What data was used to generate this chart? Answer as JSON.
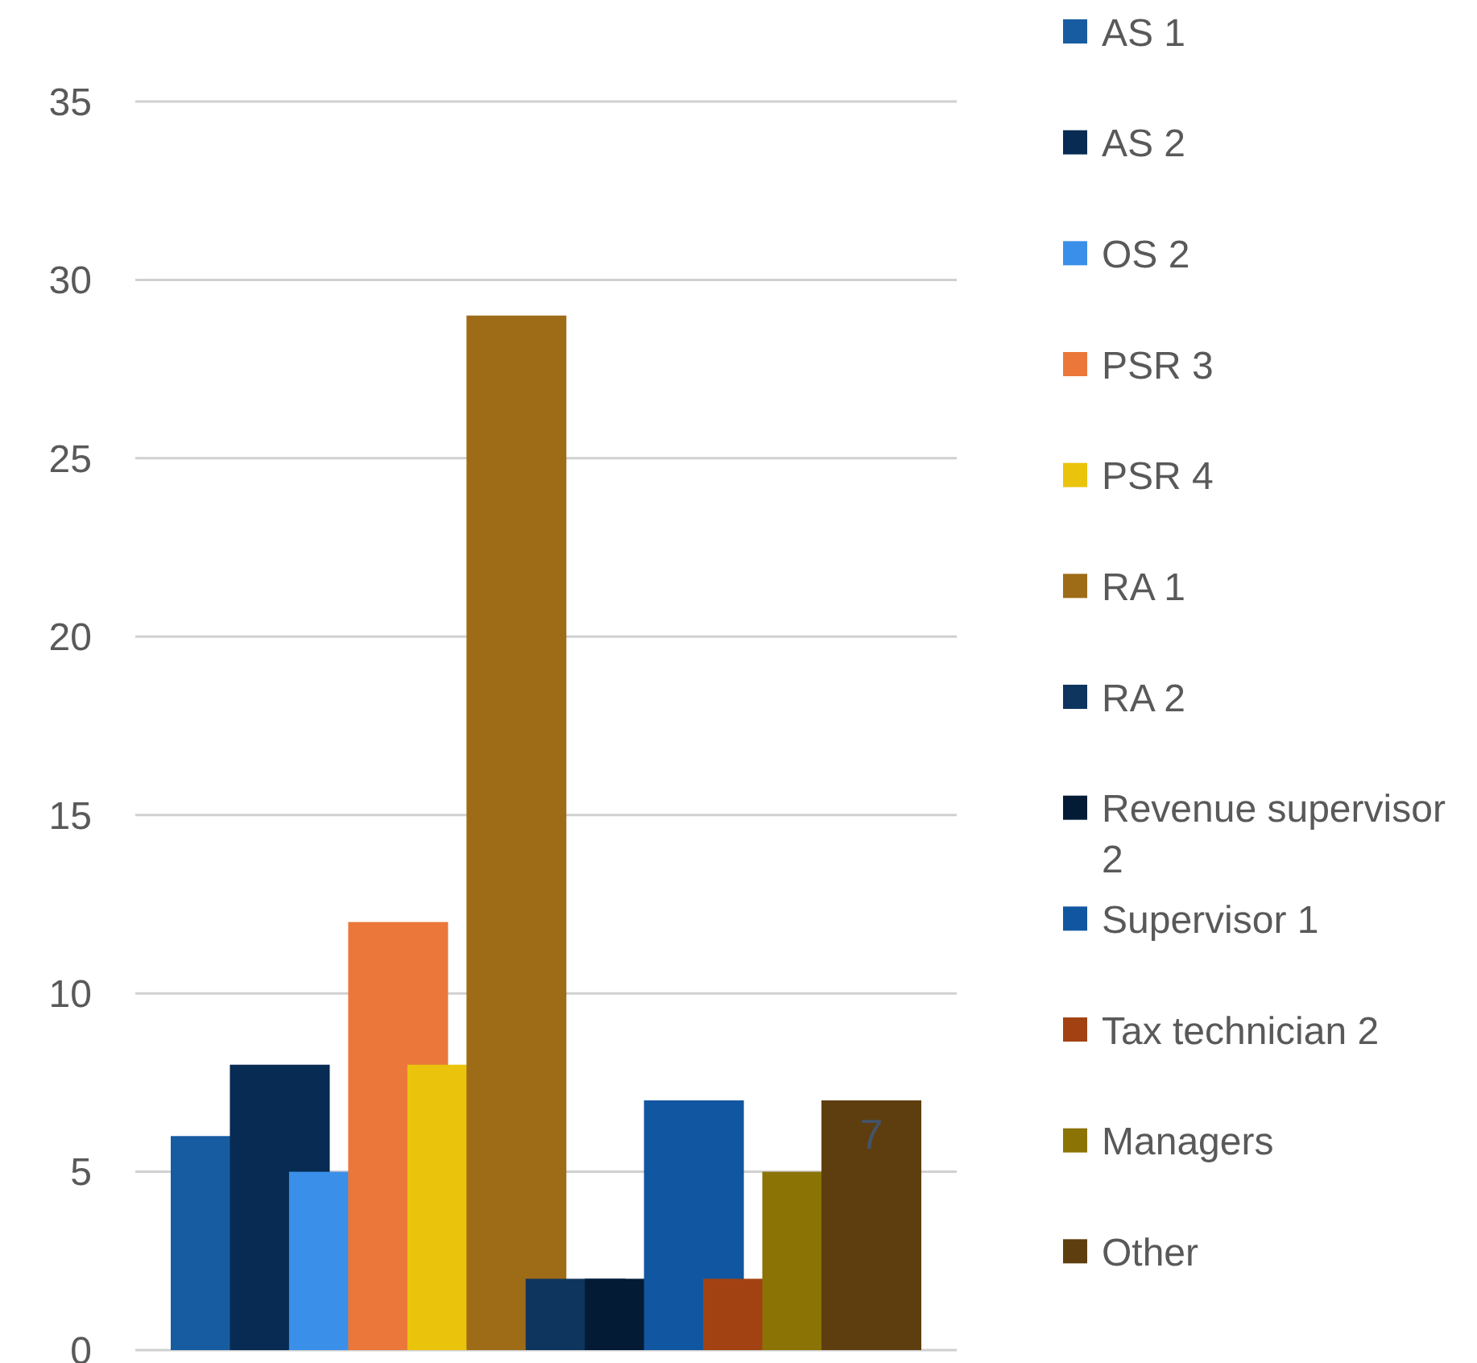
{
  "chart_data": {
    "type": "bar",
    "categories": [
      null
    ],
    "ylim": [
      0,
      35
    ],
    "yticks": [
      0,
      5,
      10,
      15,
      20,
      25,
      30,
      35
    ],
    "grid": "y",
    "legend": "right",
    "series": [
      {
        "name": "AS 1",
        "color": "#175ca1",
        "values": [
          6
        ]
      },
      {
        "name": "AS 2",
        "color": "#072b52",
        "values": [
          8
        ]
      },
      {
        "name": "OS 2",
        "color": "#3a90e8",
        "values": [
          5
        ]
      },
      {
        "name": "PSR 3",
        "color": "#eb773a",
        "values": [
          12
        ]
      },
      {
        "name": "PSR 4",
        "color": "#eac30c",
        "values": [
          8
        ]
      },
      {
        "name": "RA 1",
        "color": "#9e6b17",
        "values": [
          29
        ]
      },
      {
        "name": "RA 2",
        "color": "#0e355e",
        "values": [
          2
        ]
      },
      {
        "name": "Revenue supervisor 2",
        "color": "#041b35",
        "values": [
          2
        ]
      },
      {
        "name": "Supervisor 1",
        "color": "#1156a0",
        "values": [
          7
        ]
      },
      {
        "name": "Tax technician 2",
        "color": "#a24213",
        "values": [
          2
        ]
      },
      {
        "name": "Managers",
        "color": "#8b7306",
        "values": [
          5
        ]
      },
      {
        "name": "Other",
        "color": "#5e3e0f",
        "values": [
          7
        ],
        "value_labels": [
          "7"
        ]
      }
    ]
  }
}
